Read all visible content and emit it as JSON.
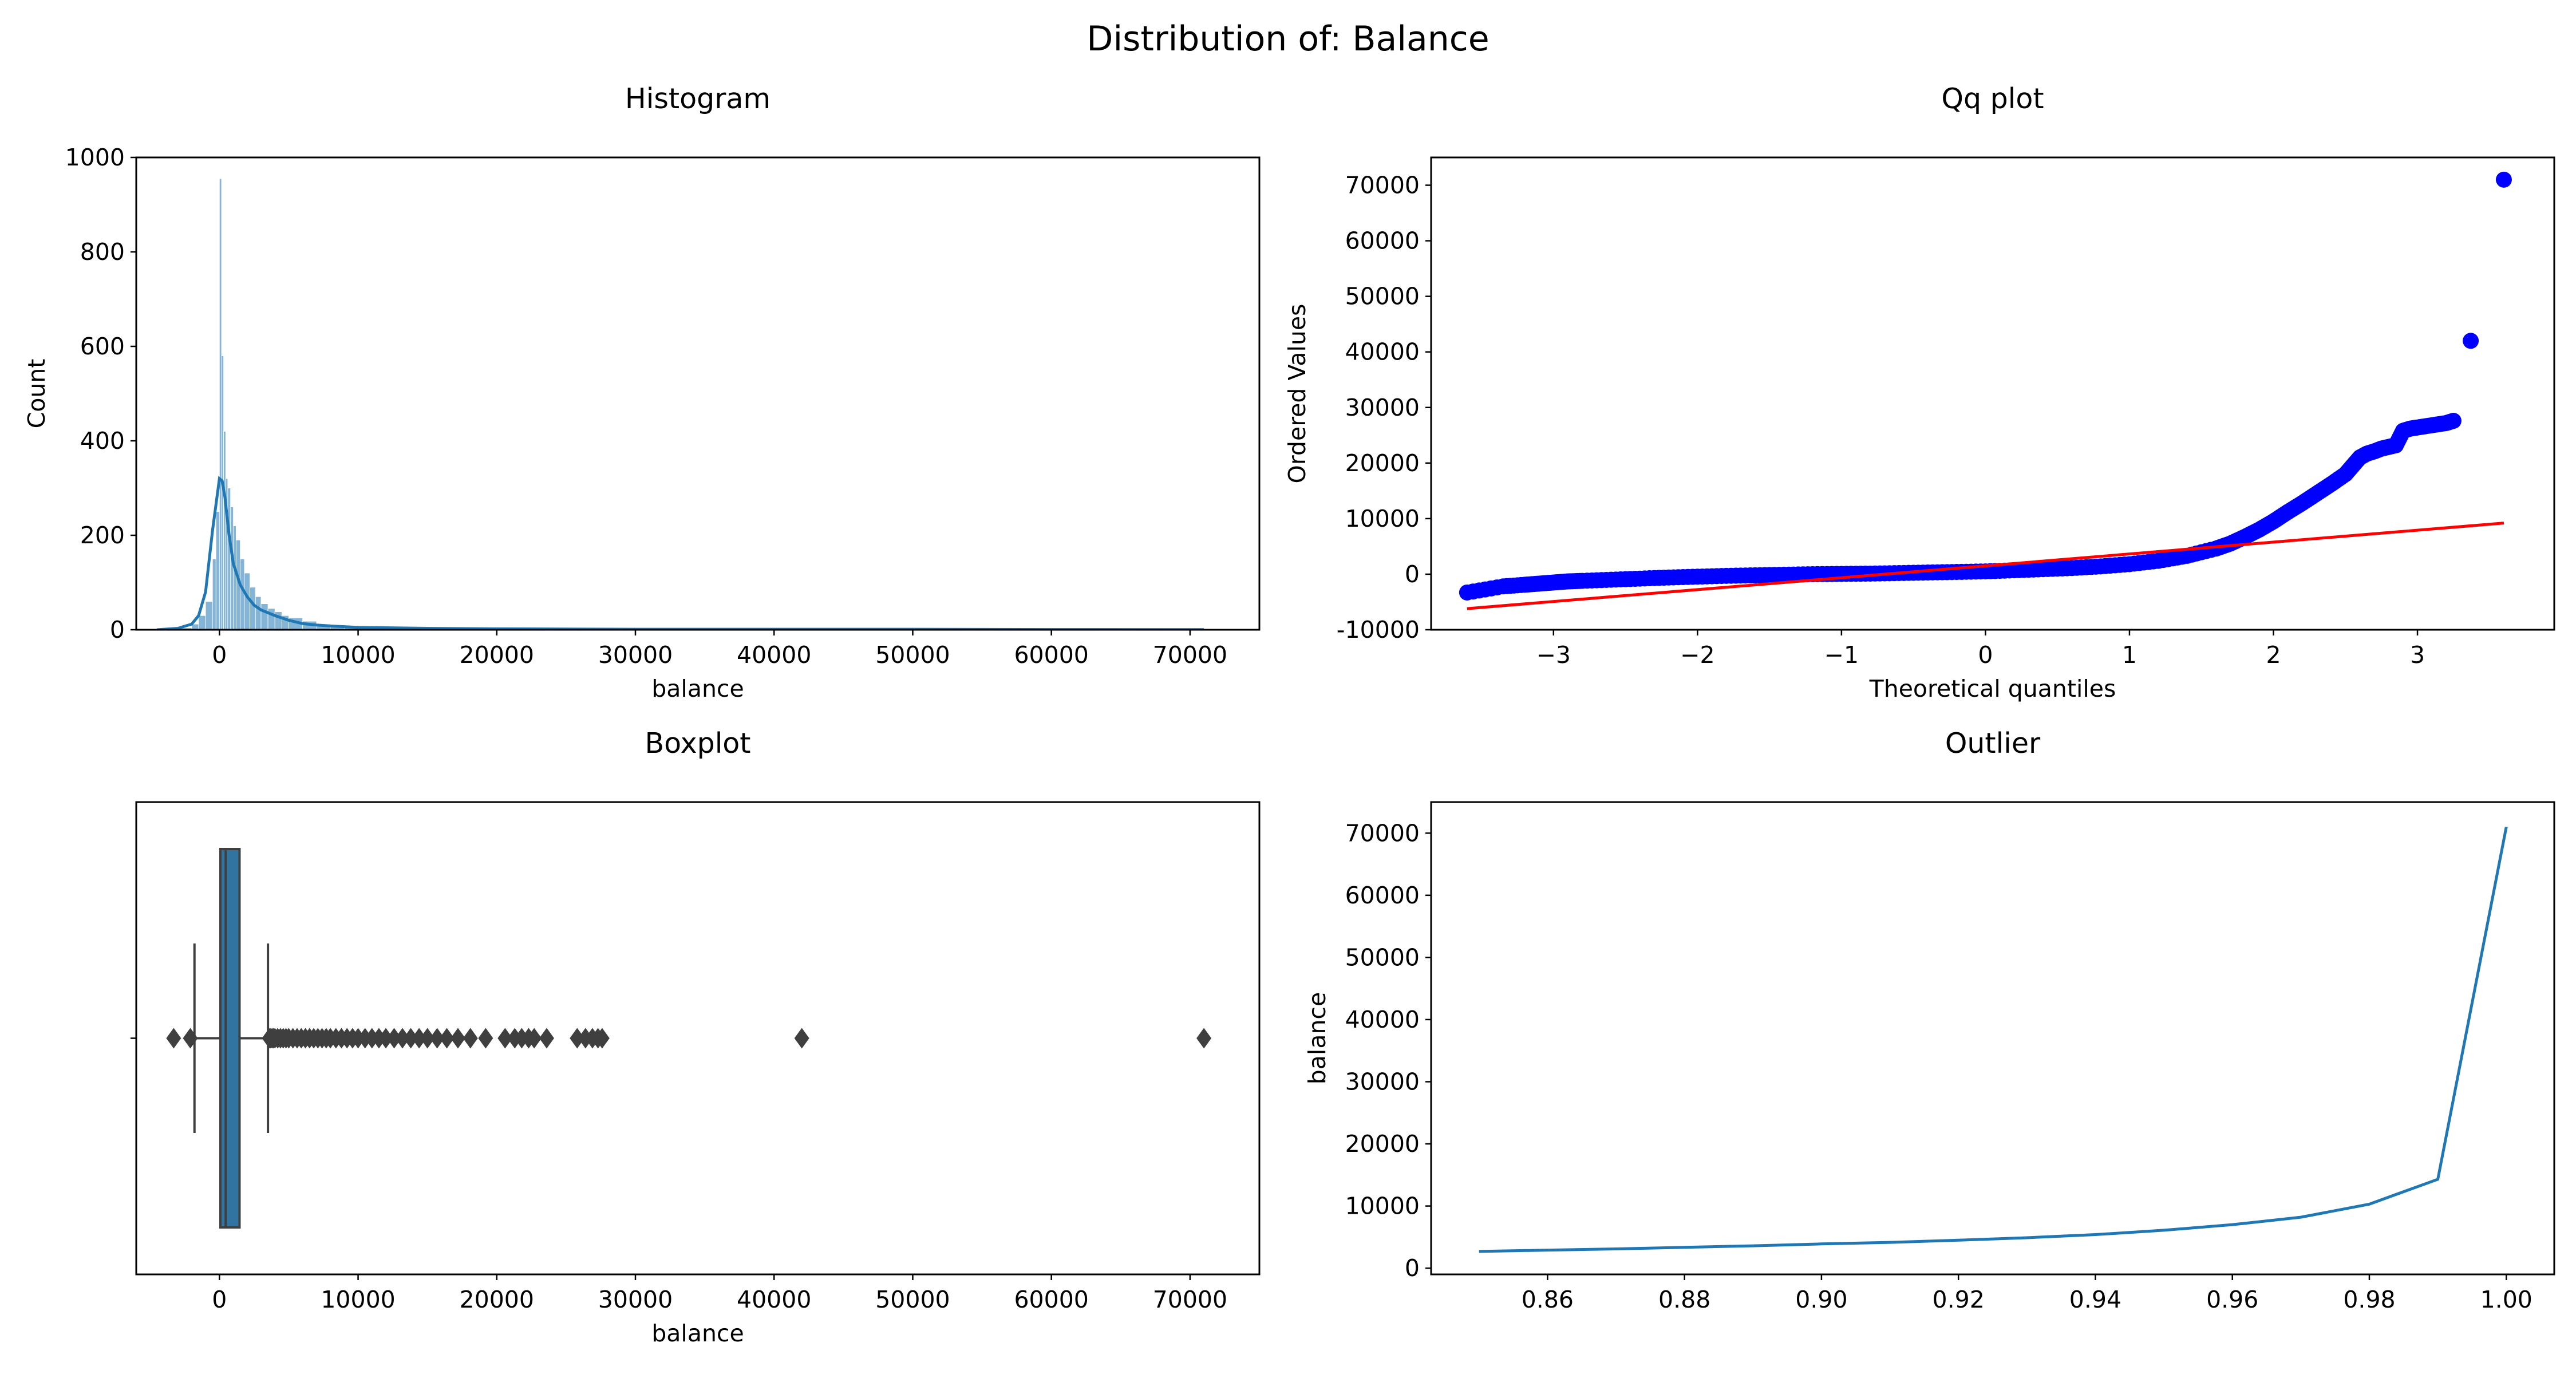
{
  "figure": {
    "title": "Distribution of: Balance"
  },
  "chart_data": [
    {
      "id": "histogram",
      "type": "bar",
      "title": "Histogram",
      "xlabel": "balance",
      "ylabel": "Count",
      "xlim": [
        -6000,
        75000
      ],
      "ylim": [
        0,
        1000
      ],
      "xticks": [
        0,
        10000,
        20000,
        30000,
        40000,
        50000,
        60000,
        70000
      ],
      "yticks": [
        0,
        200,
        400,
        600,
        800,
        1000
      ],
      "bar_color": "#1f77b4",
      "bins": [
        {
          "x": -3000,
          "value": 4
        },
        {
          "x": -2000,
          "value": 12
        },
        {
          "x": -1500,
          "value": 30
        },
        {
          "x": -1000,
          "value": 60
        },
        {
          "x": -500,
          "value": 150
        },
        {
          "x": -250,
          "value": 250
        },
        {
          "x": 0,
          "value": 955
        },
        {
          "x": 150,
          "value": 580
        },
        {
          "x": 300,
          "value": 420
        },
        {
          "x": 450,
          "value": 320
        },
        {
          "x": 600,
          "value": 300
        },
        {
          "x": 800,
          "value": 260
        },
        {
          "x": 1000,
          "value": 220
        },
        {
          "x": 1200,
          "value": 190
        },
        {
          "x": 1500,
          "value": 150
        },
        {
          "x": 1800,
          "value": 120
        },
        {
          "x": 2200,
          "value": 90
        },
        {
          "x": 2600,
          "value": 70
        },
        {
          "x": 3000,
          "value": 55
        },
        {
          "x": 3500,
          "value": 45
        },
        {
          "x": 4000,
          "value": 38
        },
        {
          "x": 4500,
          "value": 30
        },
        {
          "x": 5000,
          "value": 25
        },
        {
          "x": 6000,
          "value": 18
        },
        {
          "x": 7000,
          "value": 12
        },
        {
          "x": 8000,
          "value": 9
        },
        {
          "x": 9000,
          "value": 7
        },
        {
          "x": 10000,
          "value": 5
        },
        {
          "x": 12000,
          "value": 3
        },
        {
          "x": 15000,
          "value": 2
        },
        {
          "x": 20000,
          "value": 1
        },
        {
          "x": 27000,
          "value": 1
        }
      ],
      "kde": {
        "x": [
          -4500,
          -3000,
          -2000,
          -1500,
          -1000,
          -500,
          0,
          200,
          400,
          700,
          1000,
          1500,
          2000,
          2500,
          3000,
          4000,
          5000,
          6000,
          7000,
          8000,
          10000,
          15000,
          20000,
          30000,
          40000,
          50000,
          60000,
          71000
        ],
        "y": [
          0,
          3,
          12,
          30,
          80,
          210,
          320,
          315,
          280,
          200,
          140,
          95,
          70,
          52,
          42,
          30,
          20,
          13,
          10,
          8,
          5,
          3,
          2,
          1,
          1,
          1,
          0.5,
          0.3
        ]
      }
    },
    {
      "id": "qqplot",
      "type": "scatter",
      "title": "Qq plot",
      "xlabel": "Theoretical quantiles",
      "ylabel": "Ordered Values",
      "xlim": [
        -3.85,
        3.95
      ],
      "ylim": [
        -10000,
        75000
      ],
      "xticks": [
        -3,
        -2,
        -1,
        0,
        1,
        2,
        3
      ],
      "xtick_labels": [
        "−3",
        "−2",
        "−1",
        "0",
        "1",
        "2",
        "3"
      ],
      "yticks": [
        -10000,
        0,
        10000,
        20000,
        30000,
        40000,
        50000,
        60000,
        70000
      ],
      "point_color": "#0000ff",
      "line_color": "#ff0000",
      "points": {
        "x": [
          -3.6,
          -3.35,
          -3.2,
          -3.1,
          -3.0,
          -2.9,
          -2.8,
          -2.6,
          -2.4,
          -2.2,
          -2.0,
          -1.8,
          -1.6,
          -1.4,
          -1.2,
          -1.0,
          -0.8,
          -0.6,
          -0.4,
          -0.2,
          0.0,
          0.2,
          0.4,
          0.6,
          0.8,
          1.0,
          1.2,
          1.4,
          1.6,
          1.7,
          1.8,
          1.9,
          2.0,
          2.1,
          2.2,
          2.3,
          2.4,
          2.5,
          2.55,
          2.6,
          2.65,
          2.7,
          2.75,
          2.8,
          2.85,
          2.9,
          2.95,
          3.0,
          3.1,
          3.2,
          3.25,
          3.37,
          3.6
        ],
        "y": [
          -3300,
          -2200,
          -1900,
          -1700,
          -1500,
          -1300,
          -1200,
          -1000,
          -800,
          -600,
          -450,
          -300,
          -200,
          -100,
          0,
          50,
          100,
          200,
          300,
          400,
          500,
          700,
          900,
          1100,
          1400,
          1800,
          2400,
          3300,
          4600,
          5500,
          6700,
          8000,
          9500,
          11200,
          12800,
          14500,
          16200,
          18000,
          19500,
          21000,
          21700,
          22100,
          22600,
          22900,
          23200,
          25800,
          26200,
          26400,
          26800,
          27200,
          27600,
          42000,
          71000
        ]
      },
      "fit_line": {
        "x": [
          -3.6,
          3.6
        ],
        "y": [
          -6200,
          9200
        ]
      }
    },
    {
      "id": "boxplot",
      "type": "box",
      "title": "Boxplot",
      "xlabel": "balance",
      "xlim": [
        -6000,
        75000
      ],
      "xticks": [
        0,
        10000,
        20000,
        30000,
        40000,
        50000,
        60000,
        70000
      ],
      "box_color": "#3274a1",
      "edge_color": "#3f3f3f",
      "stats": {
        "whisker_low": -1800,
        "q1": 70,
        "median": 450,
        "q3": 1450,
        "whisker_high": 3500
      },
      "outliers": [
        -3300,
        -2100,
        3600,
        3700,
        3800,
        3900,
        4000,
        4200,
        4400,
        4600,
        4800,
        5000,
        5300,
        5600,
        5900,
        6200,
        6500,
        6800,
        7100,
        7400,
        7700,
        8000,
        8400,
        8800,
        9200,
        9600,
        10000,
        10500,
        11000,
        11500,
        12000,
        12600,
        13200,
        13800,
        14400,
        15000,
        15700,
        16400,
        17200,
        18100,
        19200,
        20600,
        21300,
        21800,
        22300,
        22700,
        23600,
        25800,
        26400,
        26900,
        27300,
        27600,
        42000,
        71000
      ]
    },
    {
      "id": "outlier",
      "type": "line",
      "title": "Outlier",
      "xlabel": "",
      "ylabel": "balance",
      "xlim": [
        0.843,
        1.007
      ],
      "ylim": [
        -1000,
        75000
      ],
      "xticks": [
        0.86,
        0.88,
        0.9,
        0.92,
        0.94,
        0.96,
        0.98,
        1.0
      ],
      "xtick_labels": [
        "0.86",
        "0.88",
        "0.90",
        "0.92",
        "0.94",
        "0.96",
        "0.98",
        "1.00"
      ],
      "yticks": [
        0,
        10000,
        20000,
        30000,
        40000,
        50000,
        60000,
        70000
      ],
      "line_color": "#1f77b4",
      "x": [
        0.85,
        0.86,
        0.87,
        0.88,
        0.89,
        0.9,
        0.91,
        0.92,
        0.93,
        0.94,
        0.95,
        0.96,
        0.97,
        0.98,
        0.99,
        1.0
      ],
      "y": [
        2700,
        2900,
        3100,
        3350,
        3600,
        3900,
        4150,
        4500,
        4900,
        5400,
        6100,
        7000,
        8200,
        10300,
        14300,
        71000
      ]
    }
  ]
}
